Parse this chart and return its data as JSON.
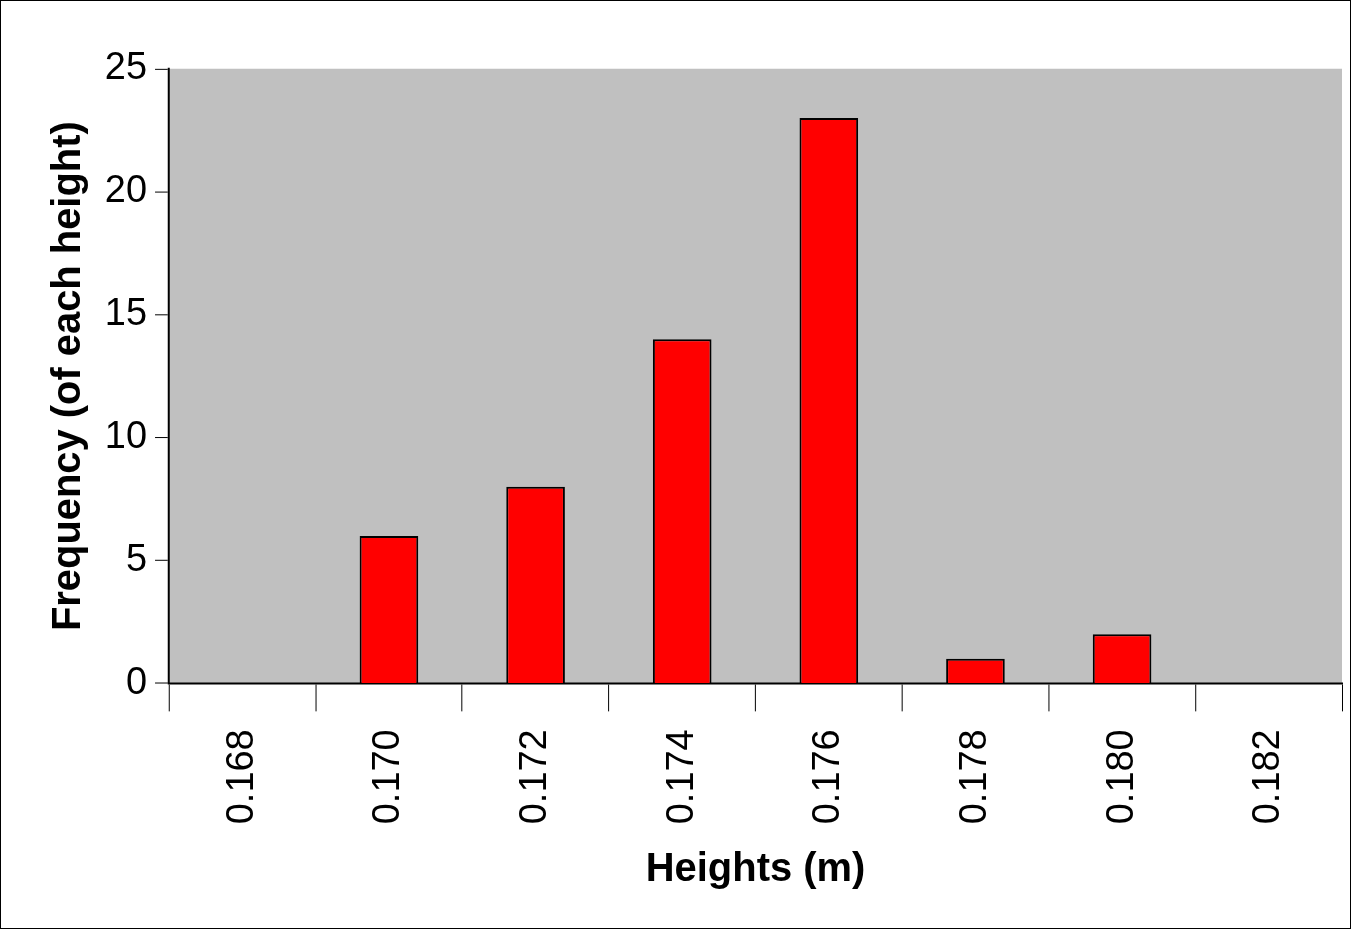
{
  "chart_data": {
    "type": "bar",
    "xlabel": "Heights (m)",
    "ylabel": "Frequency (of each height)",
    "categories": [
      "0.168",
      "0.170",
      "0.172",
      "0.174",
      "0.176",
      "0.178",
      "0.180",
      "0.182"
    ],
    "values": [
      0,
      6,
      8,
      14,
      23,
      1,
      2,
      0
    ],
    "color": "#ff0000",
    "ylim": [
      0,
      25
    ],
    "yticks": [
      0,
      5,
      10,
      15,
      20,
      25
    ],
    "grid": false,
    "legend": false
  }
}
